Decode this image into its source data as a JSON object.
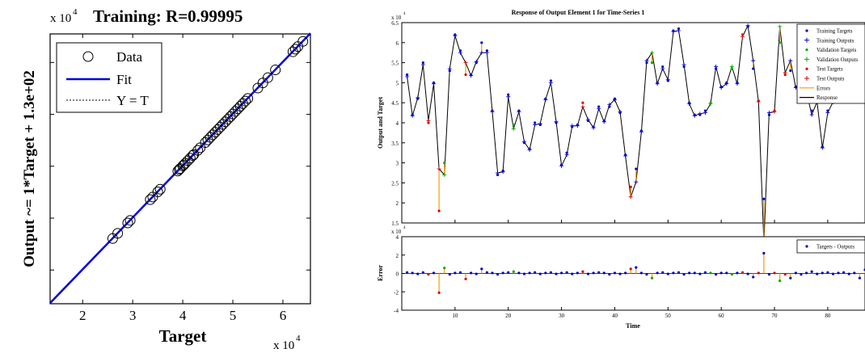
{
  "chart_data": [
    {
      "type": "scatter",
      "title": "Training: R=0.99995",
      "xlabel": "Target",
      "ylabel": "Output ~= 1*Target + 1.3e+02",
      "x_exponent_label": "x 10",
      "x_exponent_power": "4",
      "y_exponent_label": "x 10",
      "y_exponent_power": "4",
      "xlim": [
        1.35,
        6.55
      ],
      "ylim": [
        1.35,
        6.55
      ],
      "xticks": [
        2,
        3,
        4,
        5,
        6
      ],
      "xtick_labels": [
        "2",
        "3",
        "4",
        "5",
        "6"
      ],
      "legend": {
        "placement": "top-left",
        "entries": [
          {
            "label": "Data",
            "style": "circle"
          },
          {
            "label": "Fit",
            "style": "solid-blue"
          },
          {
            "label": "Y = T",
            "style": "dotted-black"
          }
        ]
      },
      "fit_line": {
        "slope": 1,
        "intercept": 0.013,
        "color": "#0000e6"
      },
      "points_x": [
        2.6,
        2.7,
        2.9,
        2.95,
        3.35,
        3.4,
        3.5,
        3.55,
        3.9,
        3.93,
        3.95,
        4.0,
        4.02,
        4.05,
        4.1,
        4.15,
        4.2,
        4.22,
        4.3,
        4.35,
        4.45,
        4.5,
        4.55,
        4.6,
        4.65,
        4.7,
        4.75,
        4.8,
        4.85,
        4.9,
        4.95,
        5.0,
        5.05,
        5.1,
        5.15,
        5.2,
        5.25,
        5.3,
        5.5,
        5.6,
        5.7,
        5.85,
        6.2,
        6.25,
        6.3,
        6.4
      ]
    },
    {
      "type": "line",
      "title": "Response of Output Element 1 for Time-Series 1",
      "xlabel": "Time",
      "ylabel": "Output and Target",
      "y_exponent_label": "x 10",
      "y_exponent_power": "4",
      "xlim": [
        0,
        87
      ],
      "ylim": [
        1.5,
        6.5
      ],
      "xticks": [
        10,
        20,
        30,
        40,
        50,
        60,
        70,
        80
      ],
      "yticks": [
        1.5,
        2,
        2.5,
        3,
        3.5,
        4,
        4.5,
        5,
        5.5,
        6,
        6.5
      ],
      "ytick_labels": [
        "1.5",
        "2",
        "2.5",
        "3",
        "3.5",
        "4",
        "4.5",
        "5",
        "5.5",
        "6",
        "6.5"
      ],
      "legend": {
        "placement": "top-right",
        "entries": [
          {
            "label": "Training Targets",
            "color": "#0000cc",
            "marker": "dot"
          },
          {
            "label": "Training Outputs",
            "color": "#0000cc",
            "marker": "plus"
          },
          {
            "label": "Validation Targets",
            "color": "#00aa00",
            "marker": "dot"
          },
          {
            "label": "Validation Outputs",
            "color": "#00aa00",
            "marker": "plus"
          },
          {
            "label": "Test Targets",
            "color": "#dd0000",
            "marker": "dot"
          },
          {
            "label": "Test Outputs",
            "color": "#dd0000",
            "marker": "plus"
          },
          {
            "label": "Errors",
            "color": "#ff9900",
            "marker": "line"
          },
          {
            "label": "Response",
            "color": "#000000",
            "marker": "line"
          }
        ]
      },
      "time": [
        1,
        2,
        3,
        4,
        5,
        6,
        7,
        8,
        9,
        10,
        11,
        12,
        13,
        14,
        15,
        16,
        17,
        18,
        19,
        20,
        21,
        22,
        23,
        24,
        25,
        26,
        27,
        28,
        29,
        30,
        31,
        32,
        33,
        34,
        35,
        36,
        37,
        38,
        39,
        40,
        41,
        42,
        43,
        44,
        45,
        46,
        47,
        48,
        49,
        50,
        51,
        52,
        53,
        54,
        55,
        56,
        57,
        58,
        59,
        60,
        61,
        62,
        63,
        64,
        65,
        66,
        67,
        68,
        69,
        70,
        71,
        72,
        73,
        74,
        75,
        76,
        77,
        78,
        79,
        80,
        81,
        82,
        83,
        84,
        85,
        86,
        87
      ],
      "targets": [
        5.2,
        4.2,
        4.6,
        5.5,
        4.0,
        5.0,
        1.8,
        3.0,
        5.3,
        6.2,
        5.8,
        5.2,
        5.2,
        5.5,
        6.0,
        5.8,
        4.3,
        2.7,
        2.8,
        4.7,
        3.95,
        4.3,
        3.5,
        3.35,
        4.0,
        3.95,
        4.6,
        5.05,
        4.0,
        2.95,
        3.25,
        3.9,
        3.95,
        4.5,
        4.05,
        3.9,
        4.4,
        4.05,
        4.4,
        4.6,
        4.25,
        3.2,
        2.4,
        2.85,
        3.8,
        5.5,
        5.5,
        5.0,
        5.4,
        5.05,
        6.3,
        6.35,
        5.4,
        4.5,
        4.2,
        4.2,
        4.3,
        4.5,
        5.35,
        4.9,
        5.0,
        5.35,
        5.0,
        6.2,
        6.4,
        5.35,
        4.55,
        2.1,
        4.2,
        4.3,
        6.0,
        5.2,
        5.3,
        4.9,
        4.8,
        4.8,
        4.3,
        4.5,
        3.4,
        4.3,
        4.5,
        4.9,
        5.5,
        5.35,
        5.8,
        5.9,
        6.0
      ],
      "error_values": [
        0.1,
        0.05,
        -0.05,
        0.1,
        -0.1,
        0.05,
        -2.1,
        0.6,
        -0.1,
        0.05,
        0.1,
        -0.6,
        0.05,
        -0.05,
        0.5,
        0.1,
        0.05,
        -0.1,
        0.05,
        0.1,
        0.2,
        0.05,
        -0.05,
        0.05,
        0.1,
        -0.05,
        0.05,
        0.1,
        -0.05,
        0.05,
        0.1,
        -0.05,
        0.05,
        0.2,
        -0.05,
        0.05,
        0.1,
        0.05,
        -0.1,
        0.05,
        -0.05,
        0.05,
        0.5,
        0.65,
        0.05,
        -0.1,
        -0.5,
        0.05,
        0.1,
        -0.05,
        0.05,
        0.1,
        -0.1,
        0.05,
        0.05,
        -0.05,
        0.1,
        0.05,
        -0.1,
        0.05,
        0.05,
        -0.1,
        0.05,
        0.1,
        -0.05,
        -0.4,
        0.05,
        2.2,
        -0.1,
        0.05,
        -0.8,
        -0.1,
        -0.5,
        0.05,
        -0.1,
        0.05,
        0.2,
        -0.05,
        0.05,
        0.1,
        -0.05,
        0.05,
        0.1,
        -0.05,
        0.05,
        -0.5,
        0.4
      ],
      "error_panel": {
        "ylabel": "Error",
        "ylim": [
          -4,
          4
        ],
        "yticks": [
          -4,
          -2,
          0,
          2,
          4
        ],
        "ytick_labels": [
          "-4",
          "-2",
          "0",
          "2",
          "4"
        ],
        "y_exponent_label": "x 10",
        "y_exponent_power": "4",
        "legend": {
          "placement": "top-right",
          "entries": [
            {
              "label": "Targets - Outputs",
              "color": "#0000cc",
              "marker": "dot"
            }
          ]
        }
      }
    }
  ],
  "colors": {
    "training": "#0000cc",
    "validation": "#00aa00",
    "test": "#dd0000",
    "errors": "#ff9900",
    "response": "#000000",
    "fit": "#0000e6"
  }
}
